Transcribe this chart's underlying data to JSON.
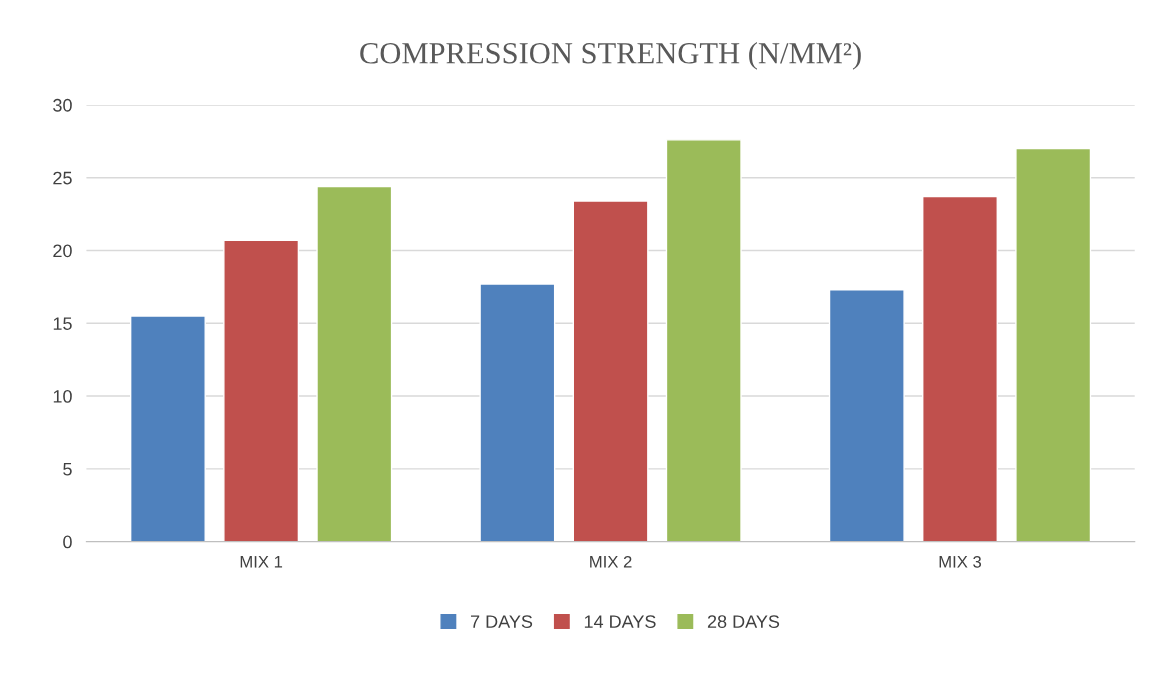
{
  "chart_data": {
    "type": "bar",
    "title": "COMPRESSION STRENGTH (N/MM²)",
    "categories": [
      "MIX 1",
      "MIX 2",
      "MIX 3"
    ],
    "series": [
      {
        "name": "7 DAYS",
        "color": "#4f81bd",
        "values": [
          15.5,
          17.7,
          17.3
        ]
      },
      {
        "name": "14 DAYS",
        "color": "#c0504d",
        "values": [
          20.7,
          23.4,
          23.7
        ]
      },
      {
        "name": "28 DAYS",
        "color": "#9bbb59",
        "values": [
          24.4,
          27.6,
          27.0
        ]
      }
    ],
    "ylim": [
      0,
      30
    ],
    "yticks": [
      0,
      5,
      10,
      15,
      20,
      25,
      30
    ],
    "grid": "y",
    "legend": "bottom"
  }
}
